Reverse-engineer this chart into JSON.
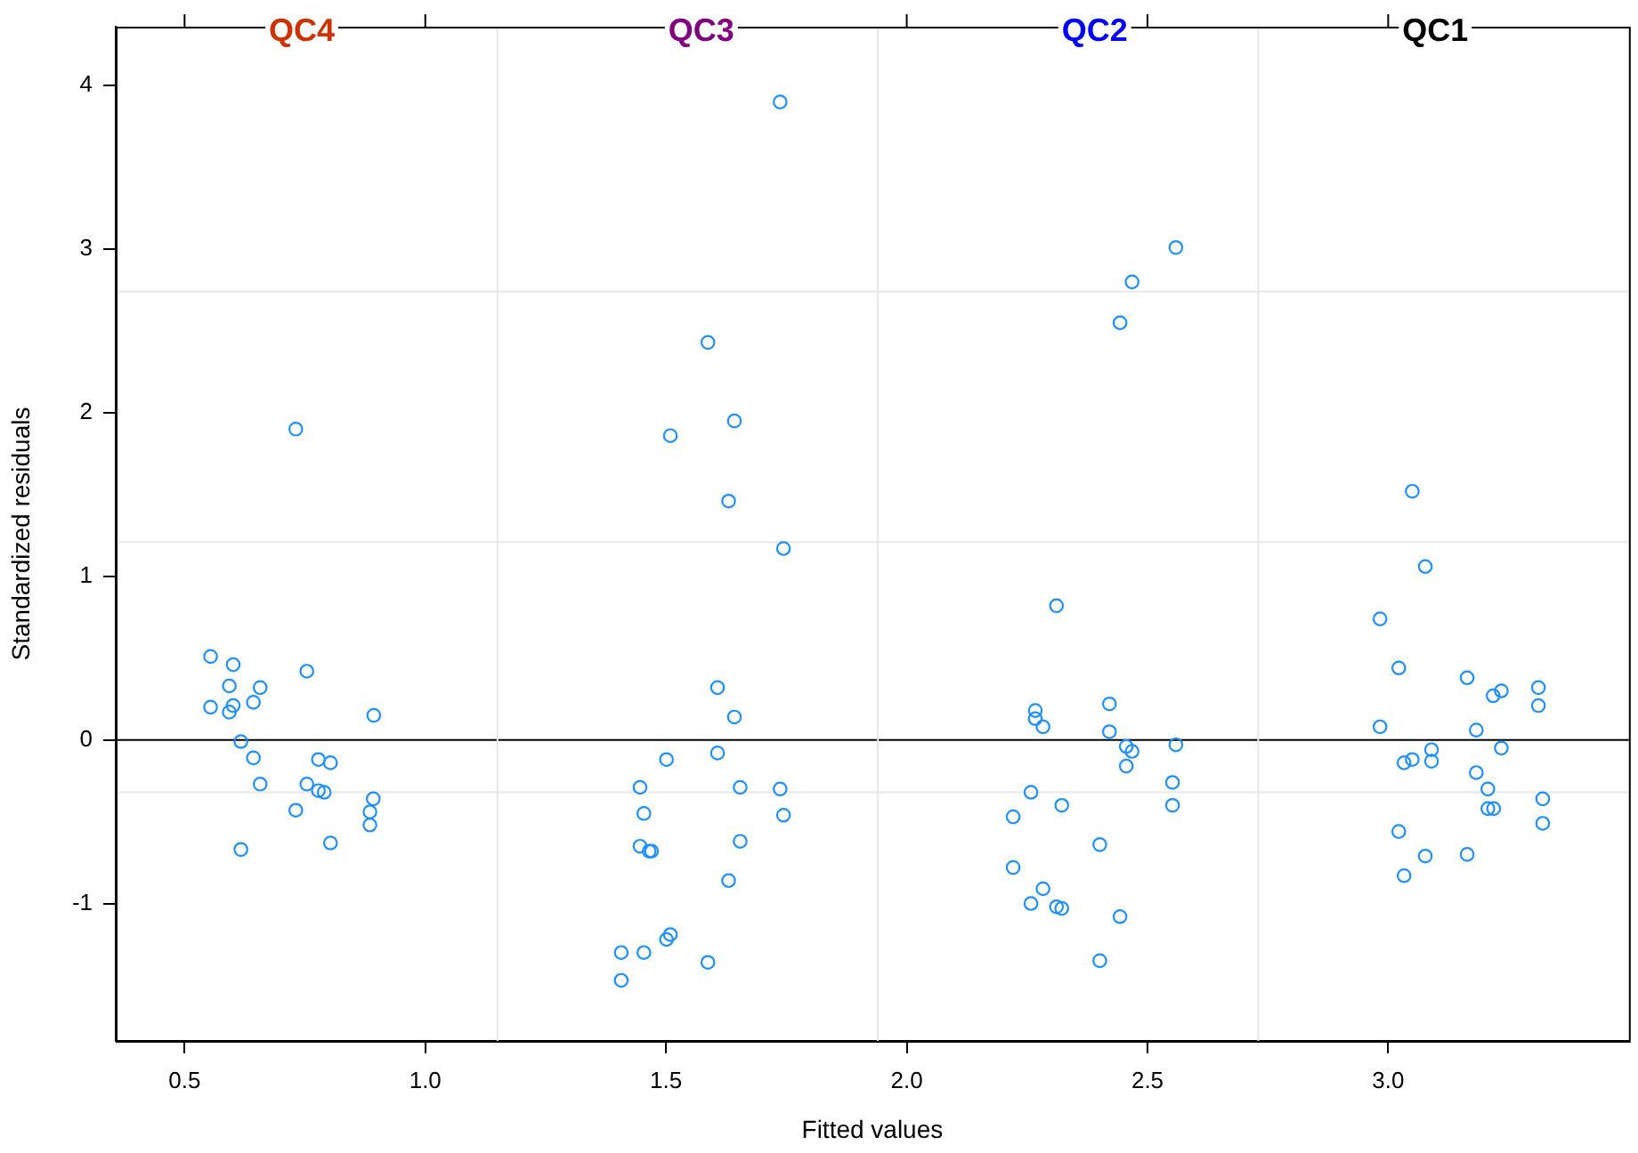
{
  "chart_data": {
    "type": "scatter",
    "xlabel": "Fitted values",
    "ylabel": "Standardized residuals",
    "xlim": [
      0.357,
      3.5
    ],
    "ylim": [
      -1.84,
      4.36
    ],
    "xticks": [
      0.5,
      {
        "value": 1,
        "label": "1.0"
      },
      1.5,
      {
        "value": 2,
        "label": "2.0"
      },
      2.5,
      {
        "value": 3,
        "label": "3.0"
      }
    ],
    "yticks": [
      -1,
      0,
      1,
      2,
      3,
      4
    ],
    "marker": "circle",
    "series": [
      {
        "color": "#1e90ff",
        "x": [
          0.554,
          0.601,
          0.754,
          0.593,
          0.657,
          0.554,
          0.601,
          0.593,
          0.643,
          0.893,
          0.617,
          0.643,
          0.778,
          0.803,
          0.657,
          0.754,
          0.778,
          0.79,
          0.892,
          0.731,
          0.885,
          0.885,
          0.803,
          0.617,
          0.731,
          1.737,
          1.587,
          1.642,
          1.509,
          1.63,
          1.744,
          1.607,
          1.642,
          1.607,
          1.501,
          1.446,
          1.654,
          1.737,
          1.454,
          1.744,
          1.654,
          1.446,
          1.465,
          1.47,
          1.63,
          1.509,
          1.501,
          1.407,
          1.454,
          1.587,
          1.407,
          2.559,
          2.468,
          2.443,
          2.311,
          2.267,
          2.267,
          2.283,
          2.421,
          2.421,
          2.456,
          2.468,
          2.559,
          2.456,
          2.552,
          2.258,
          2.552,
          2.322,
          2.221,
          2.401,
          2.221,
          2.283,
          2.258,
          2.311,
          2.322,
          2.443,
          2.401,
          3.05,
          3.077,
          2.983,
          3.022,
          3.164,
          3.218,
          3.235,
          3.312,
          3.312,
          2.983,
          3.183,
          3.09,
          3.235,
          3.033,
          3.05,
          3.09,
          3.183,
          3.207,
          3.321,
          3.207,
          3.219,
          3.321,
          3.022,
          3.164,
          3.077,
          3.033
        ],
        "values": [
          0.51,
          0.46,
          0.42,
          0.33,
          0.32,
          0.2,
          0.21,
          0.17,
          0.23,
          0.15,
          -0.01,
          -0.11,
          -0.12,
          -0.14,
          -0.27,
          -0.27,
          -0.31,
          -0.32,
          -0.36,
          -0.43,
          -0.44,
          -0.52,
          -0.63,
          -0.67,
          1.9,
          3.9,
          2.43,
          1.95,
          1.86,
          1.46,
          1.17,
          0.32,
          0.14,
          -0.08,
          -0.12,
          -0.29,
          -0.29,
          -0.3,
          -0.45,
          -0.46,
          -0.62,
          -0.65,
          -0.68,
          -0.68,
          -0.86,
          -1.19,
          -1.22,
          -1.3,
          -1.3,
          -1.36,
          -1.47,
          3.01,
          2.8,
          2.55,
          0.82,
          0.18,
          0.13,
          0.08,
          0.22,
          0.05,
          -0.04,
          -0.07,
          -0.03,
          -0.16,
          -0.26,
          -0.32,
          -0.4,
          -0.4,
          -0.47,
          -0.64,
          -0.78,
          -0.91,
          -1.0,
          -1.02,
          -1.03,
          -1.08,
          -1.35,
          1.52,
          1.06,
          0.74,
          0.44,
          0.38,
          0.27,
          0.3,
          0.32,
          0.21,
          0.08,
          0.06,
          -0.06,
          -0.05,
          -0.14,
          -0.12,
          -0.13,
          -0.2,
          -0.3,
          -0.36,
          -0.42,
          -0.42,
          -0.51,
          -0.56,
          -0.7,
          -0.71,
          -0.83
        ]
      }
    ],
    "ref_lines": [
      {
        "axis": "y",
        "value": 0,
        "color": "#000000"
      },
      {
        "axis": "y",
        "value": 2.74,
        "color": "#e8e8e8"
      },
      {
        "axis": "y",
        "value": 1.21,
        "color": "#e8e8e8"
      },
      {
        "axis": "y",
        "value": -0.32,
        "color": "#e8e8e8"
      },
      {
        "axis": "x",
        "value": 1.15,
        "color": "#e8e8e8"
      },
      {
        "axis": "x",
        "value": 1.94,
        "color": "#e8e8e8"
      },
      {
        "axis": "x",
        "value": 2.73,
        "color": "#e8e8e8"
      }
    ],
    "annotations": [
      "QC4",
      "QC3",
      "QC2",
      "QC1"
    ]
  }
}
